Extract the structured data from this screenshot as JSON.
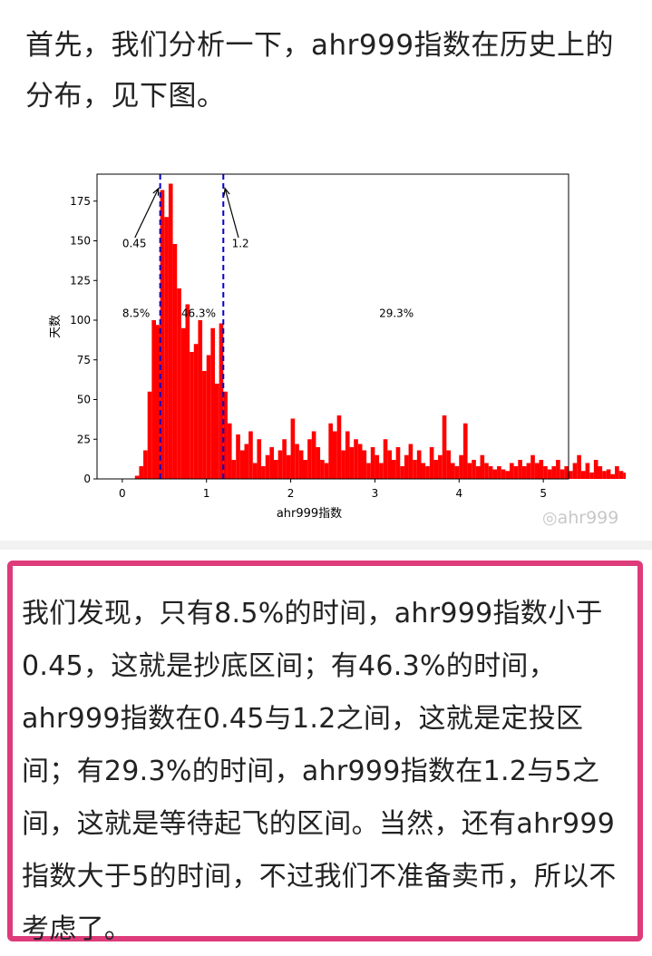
{
  "article": {
    "intro_text": "首先，我们分析一下，ahr999指数在历史上的分布，见下图。",
    "callout_text": "我们发现，只有8.5%的时间，ahr999指数小于0.45，这就是抄底区间；有46.3%的时间，ahr999指数在0.45与1.2之间，这就是定投区间；有29.3%的时间，ahr999指数在1.2与5之间，这就是等待起飞的区间。当然，还有ahr999指数大于5的时间，不过我们不准备卖币，所以不考虑了。"
  },
  "watermark": {
    "icon": "weibo-icon",
    "text": "ahr999"
  },
  "colors": {
    "bars": "#ff0000",
    "threshold_lines": "#0000cc",
    "callout_border": "#dd3b7a"
  },
  "chart_data": {
    "type": "bar",
    "xlabel": "ahr999指数",
    "ylabel": "天数",
    "xlim": [
      -0.3,
      5.3
    ],
    "ylim": [
      0,
      192
    ],
    "xticks": [
      0,
      1,
      2,
      3,
      4,
      5
    ],
    "yticks": [
      0,
      25,
      50,
      75,
      100,
      125,
      150,
      175
    ],
    "grid": false,
    "bin_width": 0.05,
    "bin_start": 0.15,
    "values": [
      2,
      8,
      18,
      55,
      100,
      97,
      182,
      165,
      186,
      148,
      120,
      95,
      110,
      80,
      85,
      100,
      68,
      78,
      95,
      60,
      98,
      55,
      35,
      12,
      28,
      18,
      22,
      30,
      10,
      25,
      8,
      15,
      20,
      12,
      18,
      25,
      15,
      38,
      22,
      18,
      12,
      25,
      30,
      20,
      12,
      10,
      35,
      30,
      40,
      18,
      30,
      20,
      25,
      22,
      18,
      10,
      20,
      15,
      10,
      25,
      18,
      12,
      20,
      8,
      15,
      22,
      12,
      18,
      10,
      8,
      20,
      12,
      15,
      40,
      18,
      10,
      8,
      15,
      35,
      10,
      12,
      8,
      15,
      10,
      8,
      6,
      8,
      6,
      5,
      10,
      8,
      12,
      8,
      10,
      15,
      10,
      12,
      8,
      6,
      8,
      12,
      6,
      8,
      5,
      10,
      15,
      5,
      10,
      4,
      12,
      8,
      5,
      6,
      3,
      8,
      5,
      4,
      6,
      3,
      5,
      4,
      5,
      3,
      5
    ],
    "thresholds": [
      {
        "x": 0.45,
        "label": "0.45"
      },
      {
        "x": 1.2,
        "label": "1.2"
      }
    ],
    "annotations": [
      {
        "text": "8.5%",
        "x": 0.0,
        "y": 102
      },
      {
        "text": "46.3%",
        "x": 0.7,
        "y": 102
      },
      {
        "text": "29.3%",
        "x": 3.05,
        "y": 102
      },
      {
        "text": "0.45",
        "x": 0.0,
        "y": 146
      },
      {
        "text": "1.2",
        "x": 1.3,
        "y": 146
      }
    ]
  }
}
